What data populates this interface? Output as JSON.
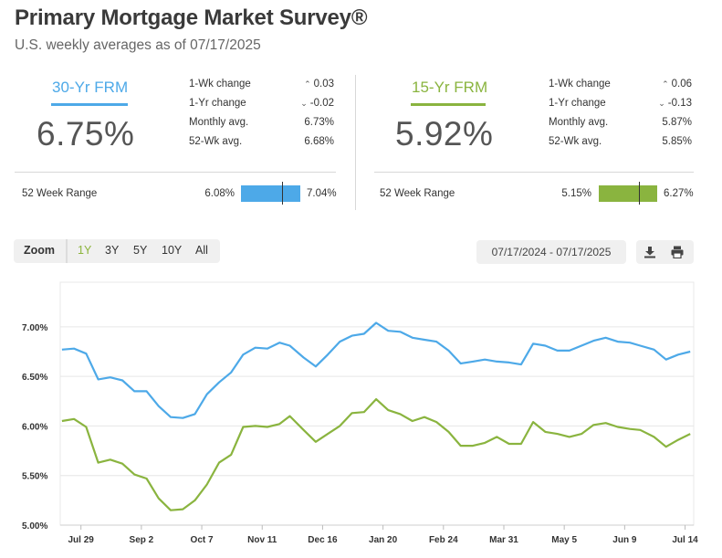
{
  "header": {
    "title": "Primary Mortgage Market Survey®",
    "subtitle": "U.S. weekly averages as of 07/17/2025"
  },
  "colors": {
    "frm30": "#4da9e8",
    "frm15": "#8ab43f",
    "grid": "#e6e6e6",
    "plot_bg": "#ffffff"
  },
  "frm30": {
    "label": "30-Yr FRM",
    "rate": "6.75%",
    "stats": [
      {
        "name": "1-Wk change",
        "value": "0.03",
        "arrow": "^"
      },
      {
        "name": "1-Yr change",
        "value": "-0.02",
        "arrow": "v"
      },
      {
        "name": "Monthly avg.",
        "value": "6.73%",
        "arrow": ""
      },
      {
        "name": "52-Wk avg.",
        "value": "6.68%",
        "arrow": ""
      }
    ],
    "range_label": "52 Week Range",
    "range_low": "6.08%",
    "range_high": "7.04%",
    "range_current_fraction": 0.698
  },
  "frm15": {
    "label": "15-Yr FRM",
    "rate": "5.92%",
    "stats": [
      {
        "name": "1-Wk change",
        "value": "0.06",
        "arrow": "^"
      },
      {
        "name": "1-Yr change",
        "value": "-0.13",
        "arrow": "v"
      },
      {
        "name": "Monthly avg.",
        "value": "5.87%",
        "arrow": ""
      },
      {
        "name": "52-Wk avg.",
        "value": "5.85%",
        "arrow": ""
      }
    ],
    "range_label": "52 Week Range",
    "range_low": "5.15%",
    "range_high": "6.27%",
    "range_current_fraction": 0.688
  },
  "toolbar": {
    "zoom_label": "Zoom",
    "buttons": [
      "1Y",
      "3Y",
      "5Y",
      "10Y",
      "All"
    ],
    "active": "1Y",
    "date_range": "07/17/2024 - 07/17/2025",
    "download_icon": "download-icon",
    "print_icon": "print-icon"
  },
  "chart_data": {
    "type": "line",
    "x": [
      "07/18/2024",
      "07/25/2024",
      "08/01/2024",
      "08/08/2024",
      "08/15/2024",
      "08/22/2024",
      "08/29/2024",
      "09/05/2024",
      "09/12/2024",
      "09/19/2024",
      "09/26/2024",
      "10/03/2024",
      "10/10/2024",
      "10/17/2024",
      "10/24/2024",
      "10/31/2024",
      "11/07/2024",
      "11/14/2024",
      "11/21/2024",
      "11/27/2024",
      "12/05/2024",
      "12/12/2024",
      "12/19/2024",
      "12/26/2024",
      "01/02/2025",
      "01/09/2025",
      "01/16/2025",
      "01/23/2025",
      "01/30/2025",
      "02/06/2025",
      "02/13/2025",
      "02/20/2025",
      "02/27/2025",
      "03/06/2025",
      "03/13/2025",
      "03/20/2025",
      "03/27/2025",
      "04/03/2025",
      "04/10/2025",
      "04/17/2025",
      "04/24/2025",
      "05/01/2025",
      "05/08/2025",
      "05/15/2025",
      "05/22/2025",
      "05/29/2025",
      "06/05/2025",
      "06/12/2025",
      "06/18/2025",
      "06/26/2025",
      "07/03/2025",
      "07/10/2025",
      "07/17/2025"
    ],
    "series": [
      {
        "name": "30-Yr FRM",
        "values": [
          6.77,
          6.78,
          6.73,
          6.47,
          6.49,
          6.46,
          6.35,
          6.35,
          6.2,
          6.09,
          6.08,
          6.12,
          6.32,
          6.44,
          6.54,
          6.72,
          6.79,
          6.78,
          6.84,
          6.81,
          6.69,
          6.6,
          6.72,
          6.85,
          6.91,
          6.93,
          7.04,
          6.96,
          6.95,
          6.89,
          6.87,
          6.85,
          6.76,
          6.63,
          6.65,
          6.67,
          6.65,
          6.64,
          6.62,
          6.83,
          6.81,
          6.76,
          6.76,
          6.81,
          6.86,
          6.89,
          6.85,
          6.84,
          6.81,
          6.77,
          6.67,
          6.72,
          6.75
        ]
      },
      {
        "name": "15-Yr FRM",
        "values": [
          6.05,
          6.07,
          5.99,
          5.63,
          5.66,
          5.62,
          5.51,
          5.47,
          5.27,
          5.15,
          5.16,
          5.25,
          5.41,
          5.63,
          5.71,
          5.99,
          6.0,
          5.99,
          6.02,
          6.1,
          5.96,
          5.84,
          5.92,
          6.0,
          6.13,
          6.14,
          6.27,
          6.16,
          6.12,
          6.05,
          6.09,
          6.04,
          5.94,
          5.8,
          5.8,
          5.83,
          5.89,
          5.82,
          5.82,
          6.04,
          5.94,
          5.92,
          5.89,
          5.92,
          6.01,
          6.03,
          5.99,
          5.97,
          5.96,
          5.89,
          5.79,
          5.86,
          5.92
        ]
      }
    ],
    "y_ticks": [
      "5.00%",
      "5.50%",
      "6.00%",
      "6.50%",
      "7.00%"
    ],
    "ylim": [
      5.0,
      7.45
    ],
    "x_tick_labels": [
      {
        "label": "Jul 29",
        "date": "07/29/2024"
      },
      {
        "label": "Sep 2",
        "date": "09/02/2024"
      },
      {
        "label": "Oct 7",
        "date": "10/07/2024"
      },
      {
        "label": "Nov 11",
        "date": "11/11/2024"
      },
      {
        "label": "Dec 16",
        "date": "12/16/2024"
      },
      {
        "label": "Jan 20",
        "date": "01/20/2025"
      },
      {
        "label": "Feb 24",
        "date": "02/24/2025"
      },
      {
        "label": "Mar 31",
        "date": "03/31/2025"
      },
      {
        "label": "May 5",
        "date": "05/05/2025"
      },
      {
        "label": "Jun 9",
        "date": "06/09/2025"
      },
      {
        "label": "Jul 14",
        "date": "07/14/2025"
      }
    ],
    "x_range": [
      "07/17/2024",
      "07/19/2025"
    ],
    "grid": true,
    "legend": "none"
  }
}
